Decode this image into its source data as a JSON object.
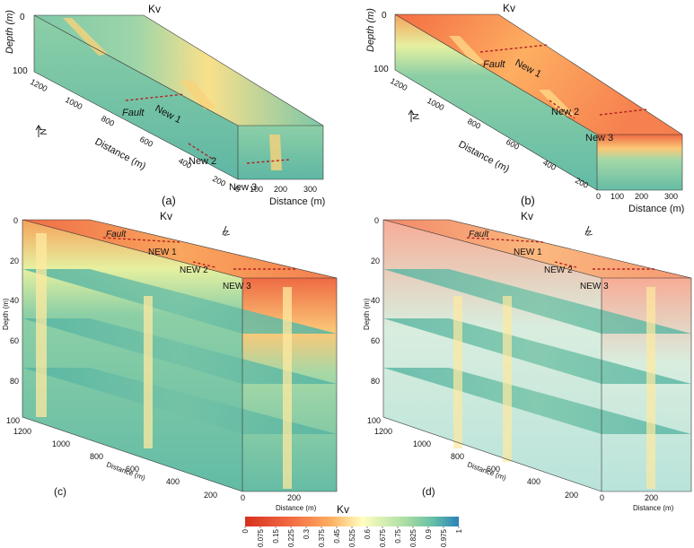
{
  "figure": {
    "variable_title": "Kv",
    "north_label": "N"
  },
  "panels": {
    "a": {
      "label": "(a)",
      "title": "Kv",
      "depth_axis": {
        "label": "Depth (m)",
        "ticks": [
          "0",
          "100"
        ]
      },
      "distance_axis": {
        "label": "Distance (m)",
        "ticks": [
          "200",
          "400",
          "600",
          "800",
          "1000",
          "1200"
        ]
      },
      "width_axis": {
        "label": "Distance (m)",
        "ticks": [
          "0",
          "100",
          "200",
          "300"
        ]
      },
      "annotations": [
        "Fault",
        "New 1",
        "New 2",
        "New 3"
      ]
    },
    "b": {
      "label": "(b)",
      "title": "Kv",
      "depth_axis": {
        "label": "Depth (m)",
        "ticks": [
          "0",
          "100"
        ]
      },
      "distance_axis": {
        "label": "Distance (m)",
        "ticks": [
          "200",
          "400",
          "600",
          "800",
          "1000",
          "1200"
        ]
      },
      "width_axis": {
        "label": "Distance (m)",
        "ticks": [
          "0",
          "100",
          "200",
          "300"
        ]
      },
      "annotations": [
        "Fault",
        "New 1",
        "New 2",
        "New 3"
      ]
    },
    "c": {
      "label": "(c)",
      "title": "Kv",
      "depth_axis": {
        "label": "Depth (m)",
        "ticks": [
          "0",
          "20",
          "40",
          "60",
          "80",
          "100"
        ]
      },
      "distance_axis": {
        "label": "Distance (m)",
        "ticks": [
          "200",
          "400",
          "600",
          "800",
          "1000",
          "1200"
        ]
      },
      "width_axis": {
        "label": "Distance (m)",
        "ticks": [
          "0",
          "200"
        ]
      },
      "annotations": [
        "Fault",
        "NEW 1",
        "NEW 2",
        "NEW 3"
      ]
    },
    "d": {
      "label": "(d)",
      "title": "Kv",
      "depth_axis": {
        "label": "Depth (m)",
        "ticks": [
          "0",
          "20",
          "40",
          "60",
          "80",
          "100"
        ]
      },
      "distance_axis": {
        "label": "Distance (m)",
        "ticks": [
          "200",
          "400",
          "600",
          "800",
          "1000",
          "1200"
        ]
      },
      "width_axis": {
        "label": "Distance (m)",
        "ticks": [
          "0",
          "200"
        ]
      },
      "annotations": [
        "Fault",
        "NEW 1",
        "NEW 2",
        "NEW 3"
      ]
    }
  },
  "colorbar": {
    "title": "Kv",
    "ticks": [
      "0",
      "0.075",
      "0.15",
      "0.225",
      "0.3",
      "0.375",
      "0.45",
      "0.525",
      "0.6",
      "0.675",
      "0.75",
      "0.825",
      "0.9",
      "0.975",
      "1"
    ],
    "colors": {
      "low": "#d7301f",
      "mid_low": "#fdae61",
      "mid": "#ffffbf",
      "mid_high": "#66bfa6",
      "high": "#2b83ba"
    }
  }
}
